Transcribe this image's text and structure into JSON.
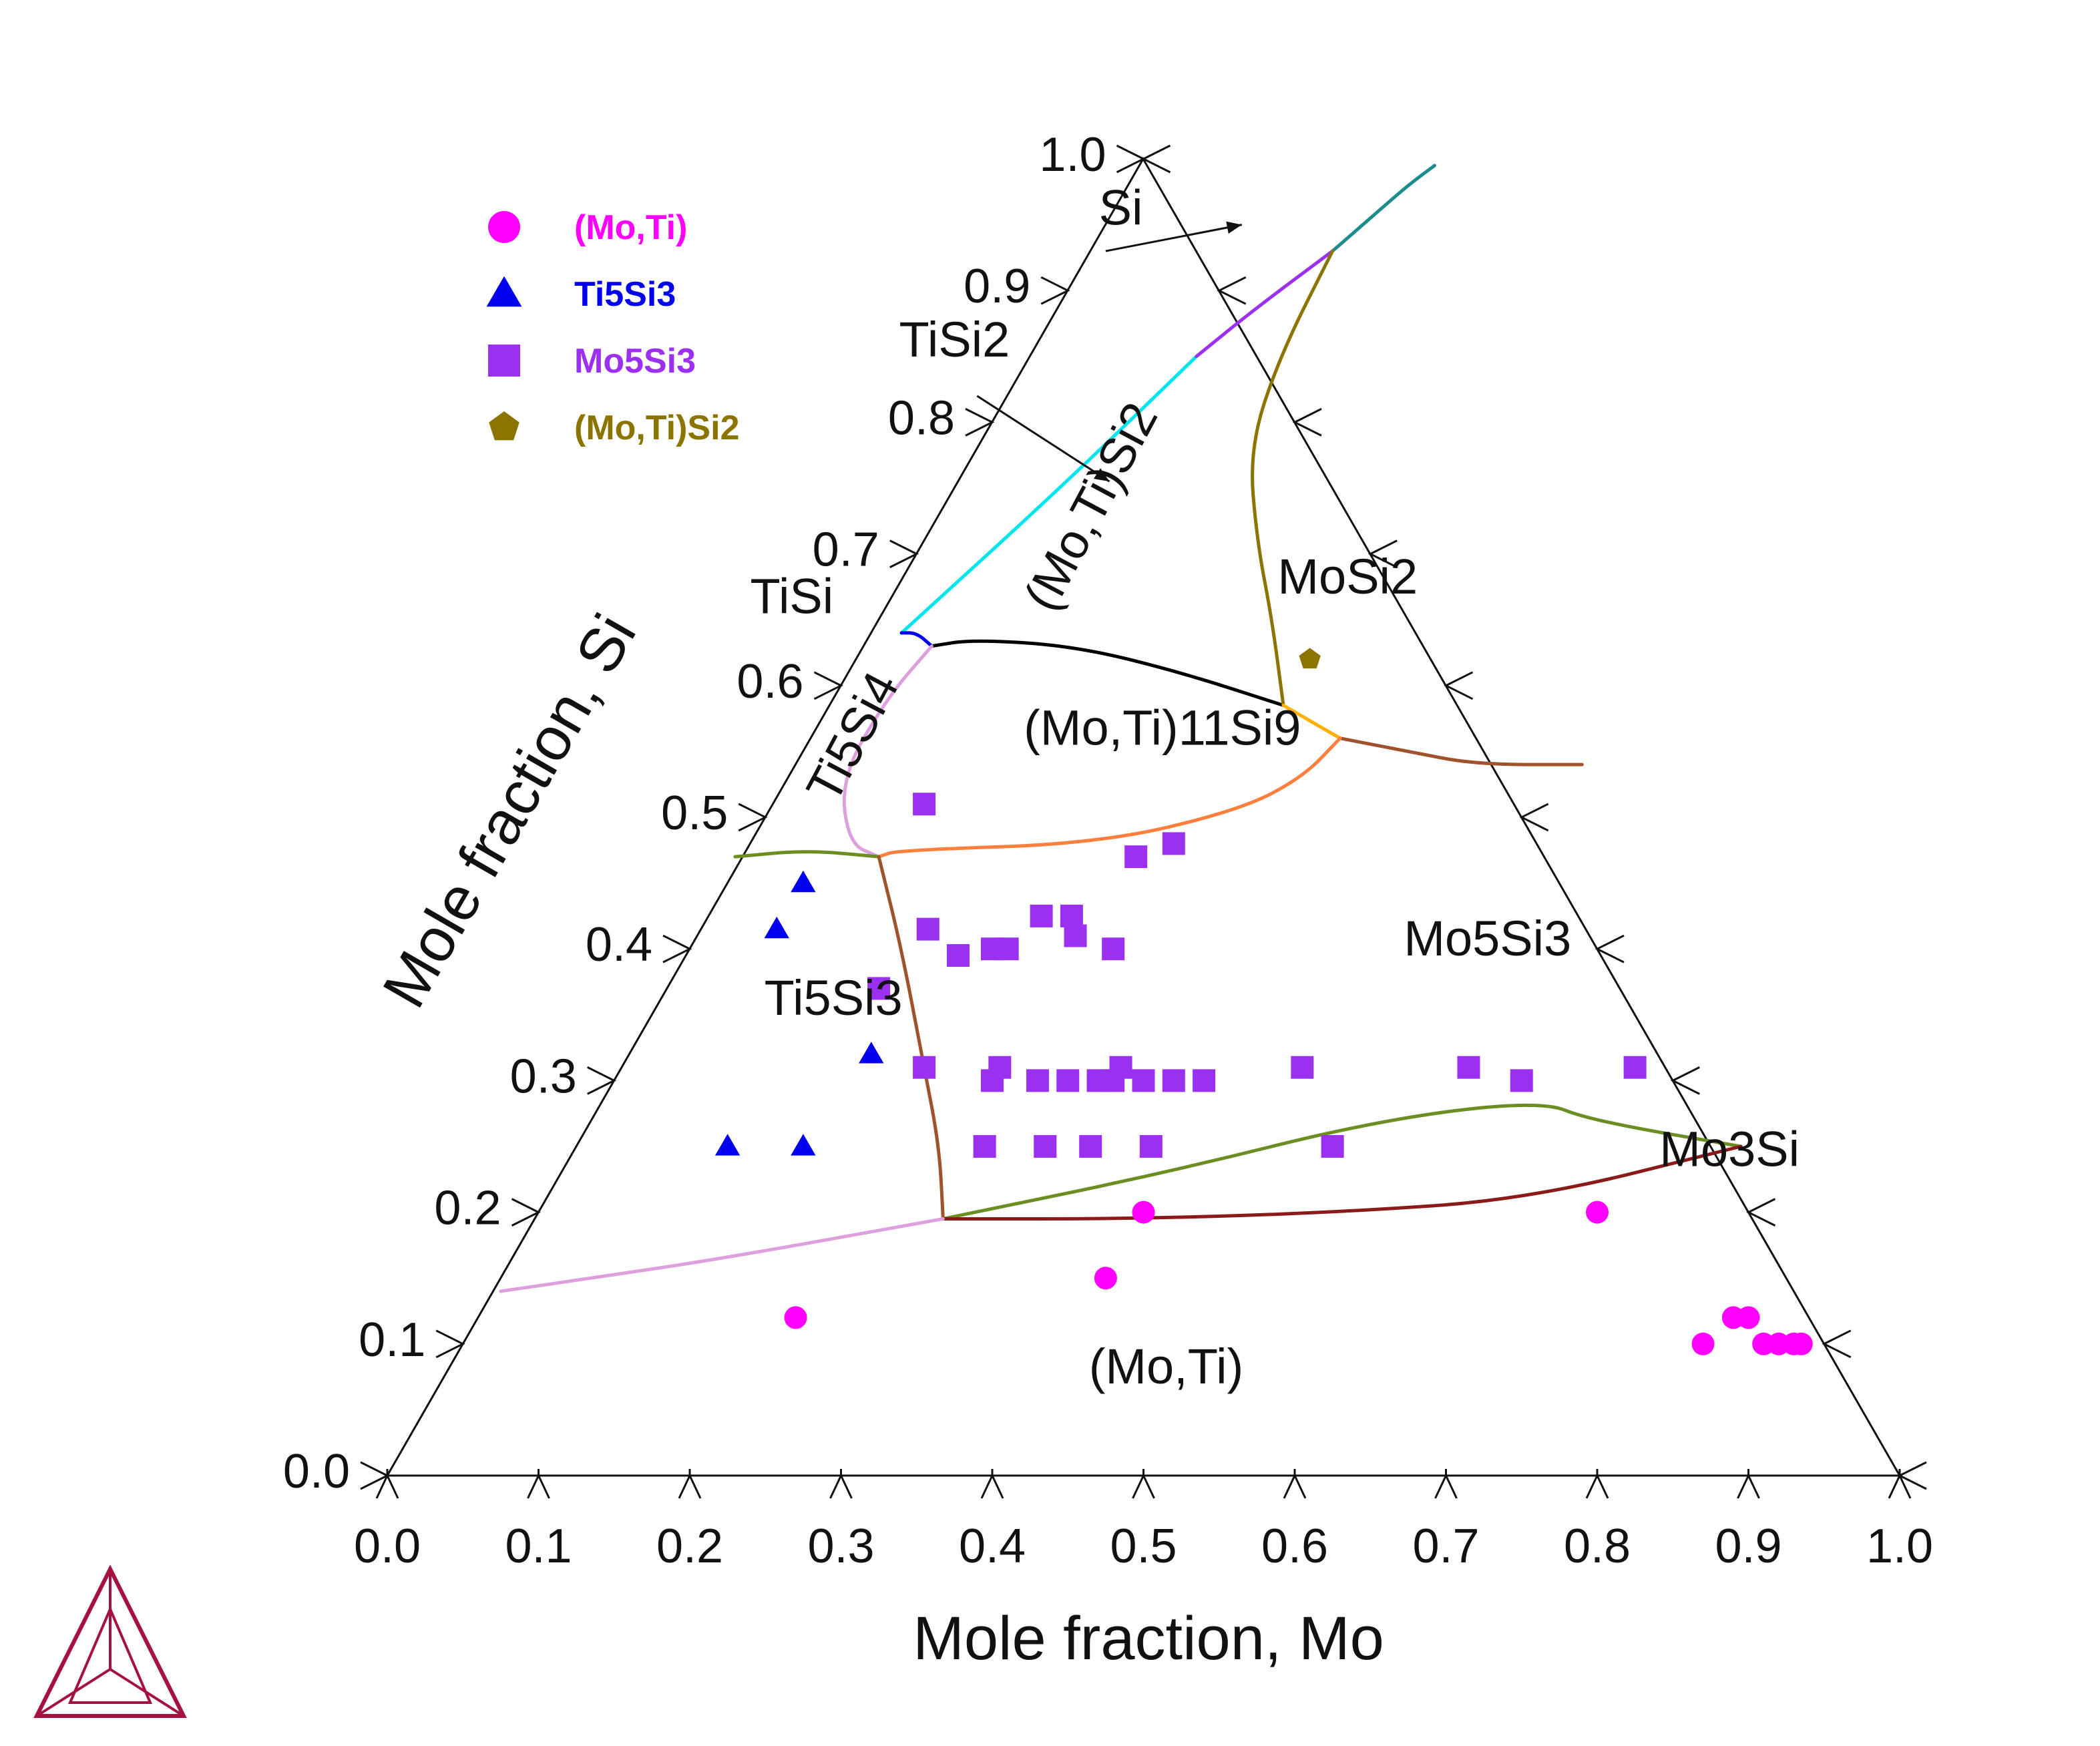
{
  "chart_data": {
    "type": "ternary-phase-diagram",
    "xlabel": "Mole fraction, Mo",
    "ylabel": "Mole fraction, Si",
    "components": {
      "bottom": "Mo",
      "left": "Si"
    },
    "xlim": [
      0,
      1
    ],
    "ylim": [
      0,
      1
    ],
    "ticks": [
      "0.0",
      "0.1",
      "0.2",
      "0.3",
      "0.4",
      "0.5",
      "0.6",
      "0.7",
      "0.8",
      "0.9",
      "1.0"
    ],
    "legend": {
      "placement": "top-left",
      "entries": [
        {
          "name": "(Mo,Ti)",
          "marker": "circle",
          "color": "#ff00ff"
        },
        {
          "name": "Ti5Si3",
          "marker": "triangle",
          "color": "#0000ee"
        },
        {
          "name": "Mo5Si3",
          "marker": "square",
          "color": "#9b30f0"
        },
        {
          "name": "(Mo,Ti)Si2",
          "marker": "pentagon",
          "color": "#8b7500"
        }
      ]
    },
    "region_labels": [
      {
        "text": "Si",
        "mo": 0.01,
        "si": 0.95
      },
      {
        "text": "TiSi2",
        "mo": -0.05,
        "si": 0.85
      },
      {
        "text": "(Mo,Ti)Si2",
        "mo": 0.11,
        "si": 0.73,
        "rotate": -62
      },
      {
        "text": "MoSi2",
        "mo": 0.3,
        "si": 0.67
      },
      {
        "text": "TiSi",
        "mo": -0.06,
        "si": 0.655
      },
      {
        "text": "Ti5Si4",
        "mo": 0.04,
        "si": 0.555,
        "rotate": -62
      },
      {
        "text": "(Mo,Ti)11Si9",
        "mo": 0.235,
        "si": 0.555
      },
      {
        "text": "Mo5Si3",
        "mo": 0.53,
        "si": 0.395
      },
      {
        "text": "Ti5Si3",
        "mo": 0.12,
        "si": 0.35
      },
      {
        "text": "Mo3Si",
        "mo": 0.77,
        "si": 0.235
      },
      {
        "text": "(Mo,Ti)",
        "mo": 0.48,
        "si": 0.07
      }
    ],
    "boundaries": [
      {
        "color": "#00e5ee",
        "points": [
          [
            0.02,
            0.64
          ],
          [
            0.07,
            0.75
          ],
          [
            0.11,
            0.85
          ]
        ]
      },
      {
        "color": "#9b30f0",
        "points": [
          [
            0.11,
            0.85
          ],
          [
            0.13,
            0.885
          ],
          [
            0.16,
            0.93
          ]
        ]
      },
      {
        "color": "#1e8c8c",
        "points": [
          [
            0.16,
            0.93
          ],
          [
            0.175,
            0.96
          ],
          [
            0.185,
            0.98
          ],
          [
            0.195,
            0.995
          ]
        ]
      },
      {
        "color": "#0000ee",
        "points": [
          [
            0.02,
            0.64
          ],
          [
            0.03,
            0.64
          ],
          [
            0.045,
            0.63
          ]
        ]
      },
      {
        "color": "#000000",
        "points": [
          [
            0.045,
            0.63
          ],
          [
            0.07,
            0.635
          ],
          [
            0.14,
            0.63
          ],
          [
            0.22,
            0.61
          ],
          [
            0.3,
            0.585
          ]
        ]
      },
      {
        "color": "#8b7500",
        "points": [
          [
            0.16,
            0.93
          ],
          [
            0.165,
            0.85
          ],
          [
            0.18,
            0.78
          ],
          [
            0.22,
            0.71
          ],
          [
            0.26,
            0.65
          ],
          [
            0.3,
            0.585
          ]
        ]
      },
      {
        "color": "#ffb000",
        "points": [
          [
            0.3,
            0.585
          ],
          [
            0.35,
            0.56
          ]
        ]
      },
      {
        "color": "#a0522d",
        "points": [
          [
            0.35,
            0.56
          ],
          [
            0.4,
            0.55
          ],
          [
            0.45,
            0.54
          ],
          [
            0.52,
            0.54
          ]
        ]
      },
      {
        "color": "#ff7f3f",
        "points": [
          [
            0.35,
            0.56
          ],
          [
            0.34,
            0.53
          ],
          [
            0.31,
            0.505
          ],
          [
            0.23,
            0.48
          ],
          [
            0.1,
            0.475
          ],
          [
            0.09,
            0.47
          ]
        ]
      },
      {
        "color": "#dda0dd",
        "points": [
          [
            0.045,
            0.63
          ],
          [
            0.035,
            0.59
          ],
          [
            0.035,
            0.53
          ],
          [
            0.065,
            0.48
          ],
          [
            0.09,
            0.47
          ]
        ]
      },
      {
        "color": "#6b8e23",
        "points": [
          [
            -0.005,
            0.47
          ],
          [
            0.04,
            0.475
          ],
          [
            0.09,
            0.47
          ]
        ]
      },
      {
        "color": "#a0522d",
        "points": [
          [
            0.09,
            0.47
          ],
          [
            0.14,
            0.4
          ],
          [
            0.2,
            0.31
          ],
          [
            0.24,
            0.25
          ],
          [
            0.27,
            0.195
          ]
        ]
      },
      {
        "color": "#6b8e23",
        "points": [
          [
            0.27,
            0.195
          ],
          [
            0.4,
            0.23
          ],
          [
            0.52,
            0.27
          ],
          [
            0.62,
            0.285
          ],
          [
            0.66,
            0.27
          ],
          [
            0.77,
            0.25
          ]
        ]
      },
      {
        "color": "#8b1a1a",
        "points": [
          [
            0.27,
            0.195
          ],
          [
            0.4,
            0.195
          ],
          [
            0.53,
            0.2
          ],
          [
            0.65,
            0.21
          ],
          [
            0.77,
            0.25
          ]
        ]
      },
      {
        "color": "#dda0dd",
        "points": [
          [
            0.005,
            0.14
          ],
          [
            0.06,
            0.15
          ],
          [
            0.14,
            0.165
          ],
          [
            0.27,
            0.195
          ]
        ]
      }
    ],
    "series": [
      {
        "name": "(Mo,Ti)",
        "marker": "circle",
        "color": "#ff00ff",
        "points": [
          [
            0.4,
            0.2
          ],
          [
            0.4,
            0.15
          ],
          [
            0.7,
            0.2
          ],
          [
            0.21,
            0.12
          ],
          [
            0.83,
            0.12
          ],
          [
            0.84,
            0.12
          ],
          [
            0.82,
            0.1
          ],
          [
            0.86,
            0.1
          ],
          [
            0.87,
            0.1
          ],
          [
            0.88,
            0.1
          ],
          [
            0.885,
            0.1
          ]
        ]
      },
      {
        "name": "Ti5Si3",
        "marker": "triangle",
        "color": "#0000ee",
        "points": [
          [
            0.05,
            0.45
          ],
          [
            0.05,
            0.415
          ],
          [
            0.16,
            0.32
          ],
          [
            0.15,
            0.25
          ],
          [
            0.1,
            0.25
          ]
        ]
      },
      {
        "name": "Mo5Si3",
        "marker": "square",
        "color": "#9b30f0",
        "points": [
          [
            0.1,
            0.51
          ],
          [
            0.28,
            0.48
          ],
          [
            0.26,
            0.47
          ],
          [
            0.22,
            0.425
          ],
          [
            0.24,
            0.425
          ],
          [
            0.25,
            0.41
          ],
          [
            0.28,
            0.4
          ],
          [
            0.15,
            0.415
          ],
          [
            0.18,
            0.395
          ],
          [
            0.2,
            0.4
          ],
          [
            0.21,
            0.4
          ],
          [
            0.14,
            0.37
          ],
          [
            0.2,
            0.31
          ],
          [
            0.25,
            0.31
          ],
          [
            0.33,
            0.31
          ],
          [
            0.45,
            0.31
          ],
          [
            0.56,
            0.31
          ],
          [
            0.67,
            0.31
          ],
          [
            0.25,
            0.3
          ],
          [
            0.28,
            0.3
          ],
          [
            0.3,
            0.3
          ],
          [
            0.32,
            0.3
          ],
          [
            0.33,
            0.3
          ],
          [
            0.35,
            0.3
          ],
          [
            0.37,
            0.3
          ],
          [
            0.39,
            0.3
          ],
          [
            0.6,
            0.3
          ],
          [
            0.27,
            0.25
          ],
          [
            0.31,
            0.25
          ],
          [
            0.34,
            0.25
          ],
          [
            0.38,
            0.25
          ],
          [
            0.5,
            0.25
          ]
        ]
      },
      {
        "name": "(Mo,Ti)Si2",
        "marker": "pentagon",
        "color": "#8b7500",
        "points": [
          [
            0.3,
            0.62
          ]
        ]
      }
    ]
  }
}
